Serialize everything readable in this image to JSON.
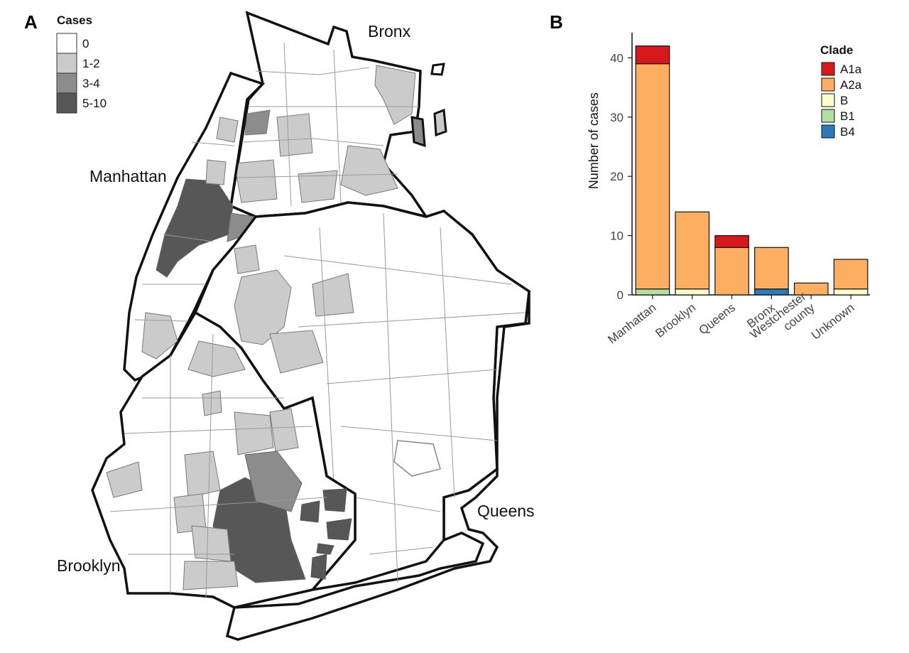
{
  "panels": {
    "a_label": "A",
    "b_label": "B"
  },
  "map": {
    "legend_title": "Cases",
    "legend": [
      {
        "label": "0",
        "color": "#ffffff"
      },
      {
        "label": "1-2",
        "color": "#cbcbcb"
      },
      {
        "label": "3-4",
        "color": "#8c8c8c"
      },
      {
        "label": "5-10",
        "color": "#575757"
      }
    ],
    "borough_labels": [
      "Bronx",
      "Manhattan",
      "Queens",
      "Brooklyn"
    ]
  },
  "chart_data": {
    "type": "bar",
    "stacked": true,
    "title": "",
    "xlabel": "",
    "ylabel": "Number of cases",
    "ylim": [
      0,
      44
    ],
    "yticks": [
      0,
      10,
      20,
      30,
      40
    ],
    "categories": [
      "Manhattan",
      "Brooklyn",
      "Queens",
      "Bronx",
      "Westchester county",
      "Unknown"
    ],
    "category_lines": [
      [
        "Manhattan"
      ],
      [
        "Brooklyn"
      ],
      [
        "Queens"
      ],
      [
        "Bronx"
      ],
      [
        "Westchester",
        "county"
      ],
      [
        "Unknown"
      ]
    ],
    "legend_title": "Clade",
    "legend_position": "top-right",
    "grid": false,
    "series": [
      {
        "name": "B1",
        "color": "#b2dfa0",
        "values": [
          1,
          0,
          0,
          0,
          0,
          0
        ]
      },
      {
        "name": "B",
        "color": "#ffffcc",
        "values": [
          0,
          1,
          0,
          0,
          0,
          1
        ]
      },
      {
        "name": "B4",
        "color": "#2c7bb6",
        "values": [
          0,
          0,
          0,
          1,
          0,
          0
        ]
      },
      {
        "name": "A2a",
        "color": "#fdae61",
        "values": [
          38,
          13,
          8,
          7,
          2,
          5
        ]
      },
      {
        "name": "A1a",
        "color": "#d7191c",
        "values": [
          3,
          0,
          2,
          0,
          0,
          0
        ]
      }
    ],
    "legend_order": [
      "A1a",
      "A2a",
      "B",
      "B1",
      "B4"
    ]
  }
}
